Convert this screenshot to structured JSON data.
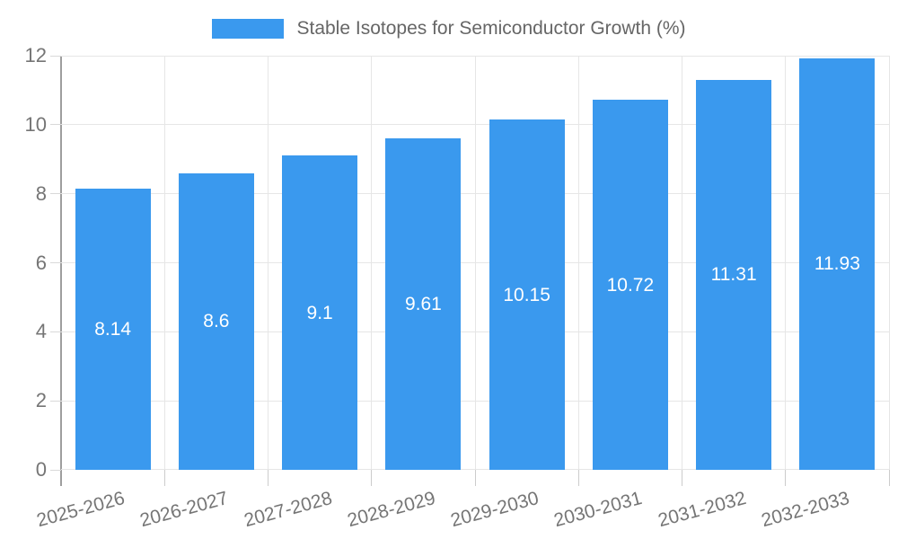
{
  "legend": {
    "series_label": "Stable Isotopes for Semiconductor Growth (%)"
  },
  "chart_data": {
    "type": "bar",
    "title": "Stable Isotopes for Semiconductor Growth (%)",
    "categories": [
      "2025-2026",
      "2026-2027",
      "2027-2028",
      "2028-2029",
      "2029-2030",
      "2030-2031",
      "2031-2032",
      "2032-2033"
    ],
    "values": [
      8.14,
      8.6,
      9.1,
      9.61,
      10.15,
      10.72,
      11.31,
      11.93
    ],
    "value_labels": [
      "8.14",
      "8.6",
      "9.1",
      "9.61",
      "10.15",
      "10.72",
      "11.31",
      "11.93"
    ],
    "xlabel": "",
    "ylabel": "",
    "ylim": [
      0,
      12
    ],
    "yticks": [
      0,
      2,
      4,
      6,
      8,
      10,
      12
    ],
    "grid": true,
    "legend_position": "top-center",
    "bar_color": "#3a99ee",
    "value_label_color": "#ffffff",
    "axis_text_color": "#757575",
    "gridline_color": "#e6e6e6"
  }
}
